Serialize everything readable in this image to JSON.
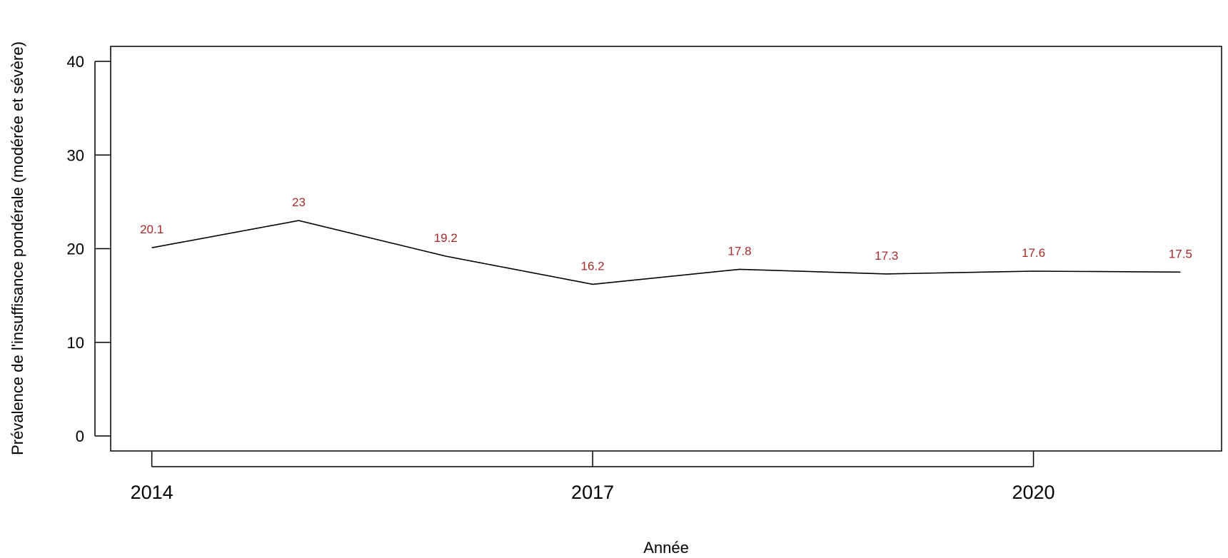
{
  "chart_data": {
    "type": "line",
    "title": "",
    "xlabel": "Année",
    "ylabel": "Prévalence de l'insuffisance pondérale (modérée et sévère)",
    "x": [
      2014,
      2015,
      2016,
      2017,
      2018,
      2019,
      2020,
      2021
    ],
    "series": [
      {
        "values": [
          20.1,
          23,
          19.2,
          16.2,
          17.8,
          17.3,
          17.6,
          17.5
        ]
      }
    ],
    "data_labels": [
      "20.1",
      "23",
      "19.2",
      "16.2",
      "17.8",
      "17.3",
      "17.6",
      "17.5"
    ],
    "x_ticks": [
      2014,
      2017,
      2020
    ],
    "x_tick_labels": [
      "2014",
      "2017",
      "2020"
    ],
    "y_ticks": [
      0,
      10,
      20,
      30,
      40
    ],
    "y_tick_labels": [
      "0",
      "10",
      "20",
      "30",
      "40"
    ],
    "xlim": [
      2013.72,
      2021.28
    ],
    "ylim": [
      -1.6,
      41.6
    ],
    "grid": false,
    "legend": "none",
    "line_color": "#000000",
    "label_color": "#a52a2a"
  }
}
